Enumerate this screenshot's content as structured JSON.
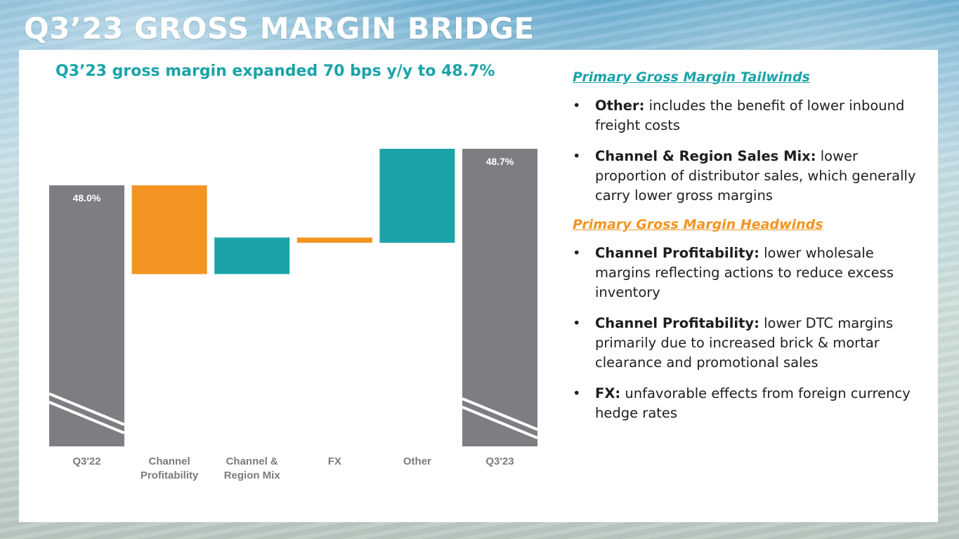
{
  "slide": {
    "title": "Q3’23 GROSS MARGIN BRIDGE",
    "subtitle": "Q3’23 gross margin expanded 70 bps y/y to 48.7%"
  },
  "colors": {
    "total": "#7d7e82",
    "decrease": "#f39422",
    "increase": "#1aa3a8",
    "accent": "#1aa3a8"
  },
  "chart_data": {
    "type": "waterfall",
    "title": "Q3’23 gross margin expanded 70 bps y/y to 48.7%",
    "categories": [
      "Q3'22",
      "Channel Profitability",
      "Channel & Region Mix",
      "FX",
      "Other",
      "Q3'23"
    ],
    "category_lines": [
      [
        "Q3'22"
      ],
      [
        "Channel",
        "Profitability"
      ],
      [
        "Channel &",
        "Region Mix"
      ],
      [
        "FX"
      ],
      [
        "Other"
      ],
      [
        "Q3'23"
      ]
    ],
    "start": 48.0,
    "start_label": "48.0%",
    "deltas": [
      -1.7,
      0.7,
      -0.1,
      1.8
    ],
    "delta_directions": [
      "decrease",
      "increase",
      "decrease",
      "increase"
    ],
    "end": 48.7,
    "end_label": "48.7%",
    "axis_break": true,
    "ylim": [
      43.0,
      48.7
    ],
    "units": "%",
    "ylabel": "",
    "xlabel": ""
  },
  "tailwinds": {
    "heading": "Primary Gross Margin Tailwinds",
    "items": [
      {
        "bold": "Other:",
        "text": " includes the benefit of lower inbound freight costs"
      },
      {
        "bold": "Channel & Region Sales Mix:",
        "text": " lower proportion of distributor sales, which generally carry lower gross margins"
      }
    ]
  },
  "headwinds": {
    "heading": "Primary Gross Margin Headwinds",
    "items": [
      {
        "bold": "Channel Profitability:",
        "text": " lower wholesale margins reflecting actions to reduce excess inventory"
      },
      {
        "bold": "Channel Profitability:",
        "text": " lower DTC margins primarily due to increased brick & mortar clearance and promotional sales"
      },
      {
        "bold": "FX:",
        "text": " unfavorable effects from foreign currency hedge rates"
      }
    ]
  },
  "bullet_glyph": "•"
}
